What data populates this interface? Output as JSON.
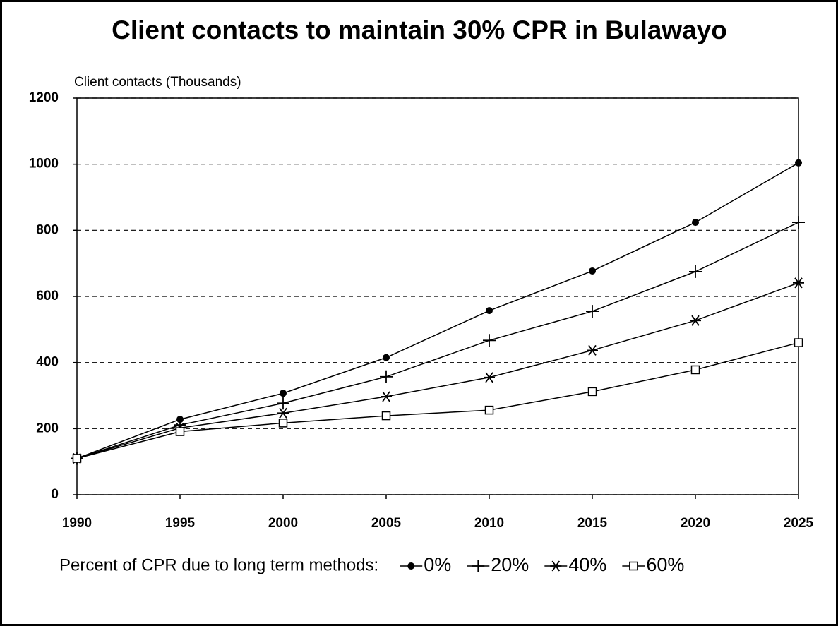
{
  "chart_data": {
    "type": "line",
    "title": "Client contacts to maintain 30% CPR in Bulawayo",
    "y_label": "Client contacts (Thousands)",
    "legend_title": "Percent of CPR due to long term methods:",
    "x": [
      1990,
      1995,
      2000,
      2005,
      2010,
      2015,
      2020,
      2025
    ],
    "xlim": [
      1990,
      2025
    ],
    "xticks": [
      1990,
      1995,
      2000,
      2005,
      2010,
      2015,
      2020,
      2025
    ],
    "ylim": [
      0,
      1200
    ],
    "yticks": [
      0,
      200,
      400,
      600,
      800,
      1000,
      1200
    ],
    "grid": true,
    "series": [
      {
        "name": "0%",
        "color": "#000000",
        "marker": "circle",
        "values": [
          110,
          228,
          307,
          415,
          557,
          677,
          824,
          1004
        ]
      },
      {
        "name": "20%",
        "color": "#000000",
        "marker": "plus",
        "values": [
          110,
          211,
          277,
          357,
          467,
          555,
          675,
          824
        ]
      },
      {
        "name": "40%",
        "color": "#000000",
        "marker": "star",
        "values": [
          110,
          202,
          247,
          297,
          355,
          437,
          527,
          641
        ]
      },
      {
        "name": "60%",
        "color": "#000000",
        "marker": "square",
        "values": [
          110,
          191,
          217,
          239,
          256,
          312,
          378,
          460
        ]
      }
    ]
  }
}
